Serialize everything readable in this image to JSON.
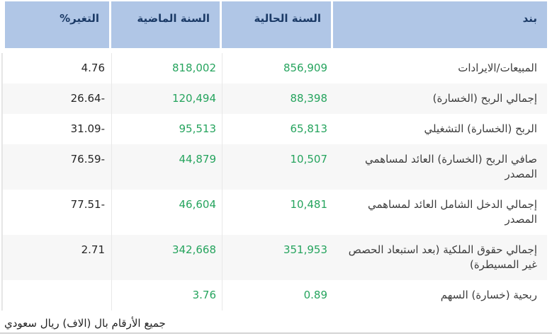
{
  "colors": {
    "header_bg": "#b0c6e6",
    "header_text": "#1b3a66",
    "value_green": "#26a45e",
    "stripe_gray": "#f7f7f7",
    "border_gray": "#e2e2e2"
  },
  "table": {
    "columns": [
      {
        "key": "item",
        "label": "بند"
      },
      {
        "key": "current",
        "label": "السنة الحالية"
      },
      {
        "key": "previous",
        "label": "السنة الماضية"
      },
      {
        "key": "change",
        "label": "التغير%"
      }
    ],
    "rows": [
      {
        "item": "المبيعات/الايرادات",
        "current": "856,909",
        "previous": "818,002",
        "change": "4.76"
      },
      {
        "item": "إجمالي الربح (الخسارة)",
        "current": "88,398",
        "previous": "120,494",
        "change": "26.64-"
      },
      {
        "item": "الربح (الخسارة) التشغيلي",
        "current": "65,813",
        "previous": "95,513",
        "change": "31.09-"
      },
      {
        "item": "صافي الربح (الخسارة) العائد لمساهمي المصدر",
        "current": "10,507",
        "previous": "44,879",
        "change": "76.59-"
      },
      {
        "item": "إجمالي الدخل الشامل العائد لمساهمي المصدر",
        "current": "10,481",
        "previous": "46,604",
        "change": "77.51-"
      },
      {
        "item": "إجمالي حقوق الملكية (بعد استبعاد الحصص غير المسيطرة)",
        "current": "351,953",
        "previous": "342,668",
        "change": "2.71"
      },
      {
        "item": "ربحية (خسارة) السهم",
        "current": "0.89",
        "previous": "3.76",
        "change": ""
      }
    ],
    "footnote": "جميع الأرقام بال (الاف) ريال سعودي"
  }
}
